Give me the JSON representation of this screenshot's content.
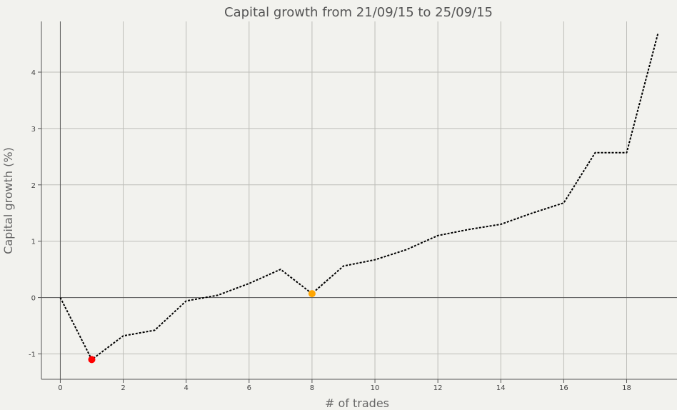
{
  "chart_data": {
    "type": "line",
    "title": "Capital growth from 21/09/15 to 25/09/15",
    "xlabel": "# of trades",
    "ylabel": "Capital growth (%)",
    "xlim": [
      -0.6,
      19.6
    ],
    "ylim": [
      -1.45,
      4.9
    ],
    "x_ticks": [
      0,
      2,
      4,
      6,
      8,
      10,
      12,
      14,
      16,
      18
    ],
    "y_ticks": [
      -1,
      0,
      1,
      2,
      3,
      4
    ],
    "grid": true,
    "series": [
      {
        "x": [
          0,
          1,
          2,
          3,
          4,
          5,
          6,
          7,
          8,
          9,
          10,
          11,
          12,
          13,
          14,
          15,
          16,
          17,
          18,
          19
        ],
        "values": [
          0,
          -1.1,
          -0.68,
          -0.58,
          -0.06,
          0.04,
          0.25,
          0.5,
          0.07,
          0.56,
          0.67,
          0.85,
          1.1,
          1.21,
          1.3,
          1.5,
          1.68,
          2.57,
          2.57,
          4.7
        ],
        "color": "#000000",
        "line_style": "dotted"
      }
    ],
    "markers": [
      {
        "x": 1,
        "y": -1.1,
        "color": "#ff0000"
      },
      {
        "x": 8,
        "y": 0.07,
        "color": "#ffa500"
      }
    ]
  }
}
